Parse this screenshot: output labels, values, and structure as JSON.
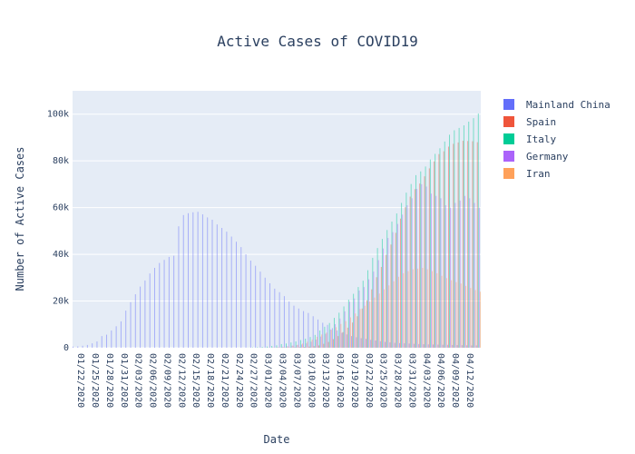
{
  "chart_data": {
    "type": "bar",
    "title": "Active Cases of COVID19",
    "xlabel": "Date",
    "ylabel": "Number of Active Cases",
    "ylim": [
      0,
      110000
    ],
    "yticks": [
      0,
      20000,
      40000,
      60000,
      80000,
      100000
    ],
    "ytick_labels": [
      "0",
      "20k",
      "40k",
      "60k",
      "80k",
      "100k"
    ],
    "xtick_labels": [
      "01/22/2020",
      "01/25/2020",
      "01/28/2020",
      "01/31/2020",
      "02/03/2020",
      "02/06/2020",
      "02/09/2020",
      "02/12/2020",
      "02/15/2020",
      "02/18/2020",
      "02/21/2020",
      "02/24/2020",
      "02/27/2020",
      "03/01/2020",
      "03/04/2020",
      "03/07/2020",
      "03/10/2020",
      "03/13/2020",
      "03/16/2020",
      "03/19/2020",
      "03/22/2020",
      "03/25/2020",
      "03/28/2020",
      "03/31/2020",
      "04/03/2020",
      "04/06/2020",
      "04/09/2020",
      "04/12/2020"
    ],
    "grid": true,
    "legend_position": "top-right",
    "series": [
      {
        "name": "Mainland China",
        "color": "#636efa",
        "values": [
          500,
          600,
          850,
          1200,
          1900,
          2700,
          5000,
          5600,
          7400,
          9200,
          11300,
          15900,
          19500,
          22900,
          26200,
          28800,
          31800,
          34200,
          36300,
          37600,
          38900,
          39400,
          52000,
          56800,
          57600,
          58000,
          58200,
          57100,
          55800,
          54800,
          52800,
          51300,
          49700,
          47600,
          45400,
          43100,
          40000,
          37300,
          35100,
          32600,
          30000,
          27600,
          25300,
          23800,
          22100,
          19800,
          18000,
          16800,
          15700,
          14900,
          13500,
          12100,
          10700,
          9800,
          8400,
          7400,
          6400,
          5700,
          5000,
          4500,
          4100,
          3800,
          3400,
          3100,
          2800,
          2500,
          2300,
          2100,
          2000,
          1900,
          1800,
          1700,
          1600,
          1500,
          1450,
          1400,
          1350,
          1300,
          1250,
          1200,
          1150,
          1100,
          1050,
          1000,
          1000
        ]
      },
      {
        "name": "Spain",
        "color": "#EF553B",
        "values": [
          0,
          0,
          0,
          0,
          0,
          0,
          0,
          0,
          0,
          0,
          0,
          0,
          0,
          0,
          0,
          0,
          0,
          0,
          0,
          0,
          0,
          0,
          0,
          0,
          0,
          0,
          0,
          0,
          0,
          0,
          0,
          0,
          0,
          0,
          0,
          0,
          0,
          0,
          0,
          0,
          0,
          0,
          50,
          80,
          110,
          150,
          200,
          280,
          370,
          500,
          700,
          1000,
          1700,
          2500,
          3700,
          5000,
          6700,
          8600,
          10800,
          13500,
          16800,
          20300,
          25000,
          30200,
          34600,
          39800,
          44200,
          49200,
          55300,
          60200,
          64700,
          67900,
          70300,
          73400,
          76800,
          79800,
          82900,
          84100,
          86100,
          87300,
          87900,
          88600,
          88500,
          88400,
          88000
        ]
      },
      {
        "name": "Italy",
        "color": "#00cc96",
        "values": [
          0,
          0,
          0,
          0,
          0,
          0,
          0,
          0,
          0,
          0,
          0,
          0,
          0,
          0,
          0,
          0,
          0,
          0,
          0,
          0,
          0,
          0,
          0,
          0,
          0,
          0,
          0,
          0,
          0,
          0,
          0,
          0,
          0,
          0,
          0,
          10,
          60,
          150,
          230,
          370,
          530,
          780,
          1050,
          1580,
          1830,
          2260,
          2710,
          3300,
          3900,
          4600,
          5500,
          7400,
          9000,
          10600,
          12800,
          15000,
          17700,
          20600,
          23100,
          26000,
          28700,
          33200,
          38500,
          42700,
          46600,
          50400,
          54000,
          57500,
          62000,
          66400,
          70100,
          73900,
          75500,
          77600,
          80600,
          83000,
          85400,
          88300,
          91200,
          93100,
          94100,
          95200,
          96800,
          98300,
          100300
        ]
      },
      {
        "name": "Germany",
        "color": "#ab63fa",
        "values": [
          0,
          0,
          0,
          0,
          0,
          0,
          0,
          0,
          0,
          0,
          0,
          0,
          0,
          0,
          0,
          0,
          0,
          0,
          0,
          0,
          0,
          0,
          0,
          0,
          0,
          0,
          0,
          0,
          0,
          0,
          0,
          0,
          0,
          0,
          0,
          0,
          0,
          0,
          50,
          100,
          150,
          180,
          240,
          480,
          650,
          900,
          1100,
          1400,
          1900,
          2600,
          3500,
          4800,
          6000,
          7800,
          10100,
          12500,
          15600,
          19700,
          21100,
          24500,
          26000,
          29300,
          32600,
          37500,
          42500,
          47000,
          49500,
          53000,
          57000,
          61000,
          64000,
          68000,
          70000,
          69000,
          66000,
          65000,
          64000,
          61000,
          60000,
          62000,
          63000,
          65000,
          64000,
          62000,
          60000
        ]
      },
      {
        "name": "Iran",
        "color": "#FFA15A",
        "values": [
          0,
          0,
          0,
          0,
          0,
          0,
          0,
          0,
          0,
          0,
          0,
          0,
          0,
          0,
          0,
          0,
          0,
          0,
          0,
          0,
          0,
          0,
          0,
          0,
          0,
          0,
          0,
          0,
          0,
          0,
          0,
          0,
          0,
          0,
          0,
          0,
          0,
          10,
          30,
          60,
          100,
          150,
          220,
          320,
          520,
          900,
          1300,
          1800,
          2600,
          3500,
          4700,
          5700,
          6500,
          7700,
          8800,
          10200,
          11400,
          13000,
          14700,
          16600,
          18000,
          19800,
          21500,
          23200,
          25000,
          26700,
          28500,
          30400,
          31900,
          32800,
          33600,
          33900,
          34200,
          33600,
          32800,
          31900,
          30800,
          29800,
          28900,
          28100,
          27500,
          26500,
          25600,
          24700,
          24000
        ]
      }
    ]
  }
}
